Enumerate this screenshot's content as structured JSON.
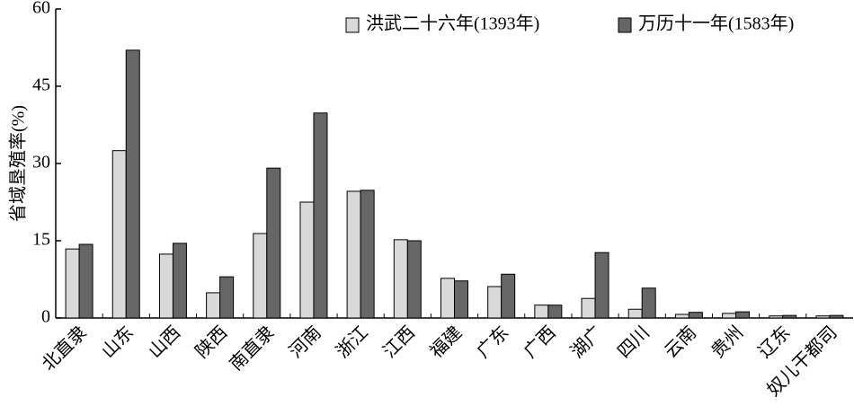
{
  "chart_data": {
    "type": "bar",
    "ylabel": "省域垦殖率(%)",
    "categories": [
      "北直隶",
      "山东",
      "山西",
      "陕西",
      "南直隶",
      "河南",
      "浙江",
      "江西",
      "福建",
      "广东",
      "广西",
      "湖广",
      "四川",
      "云南",
      "贵州",
      "辽东",
      "奴儿干都司"
    ],
    "series": [
      {
        "name": "洪武二十六年(1393年)",
        "color": "#d9d9d9",
        "values": [
          13.4,
          32.5,
          12.4,
          4.9,
          16.4,
          22.5,
          24.6,
          15.2,
          7.7,
          6.1,
          2.5,
          3.8,
          1.7,
          0.7,
          0.9,
          0.4,
          0.4
        ]
      },
      {
        "name": "万历十一年(1583年)",
        "color": "#666666",
        "values": [
          14.3,
          52,
          14.5,
          8.0,
          29.1,
          39.8,
          24.8,
          15.0,
          7.2,
          8.5,
          2.5,
          12.7,
          5.8,
          1.1,
          1.2,
          0.5,
          0.5
        ]
      }
    ],
    "ylim": [
      0,
      60
    ],
    "yticks": [
      0,
      15,
      30,
      45,
      60
    ],
    "grid": false,
    "legend": "upper right"
  }
}
